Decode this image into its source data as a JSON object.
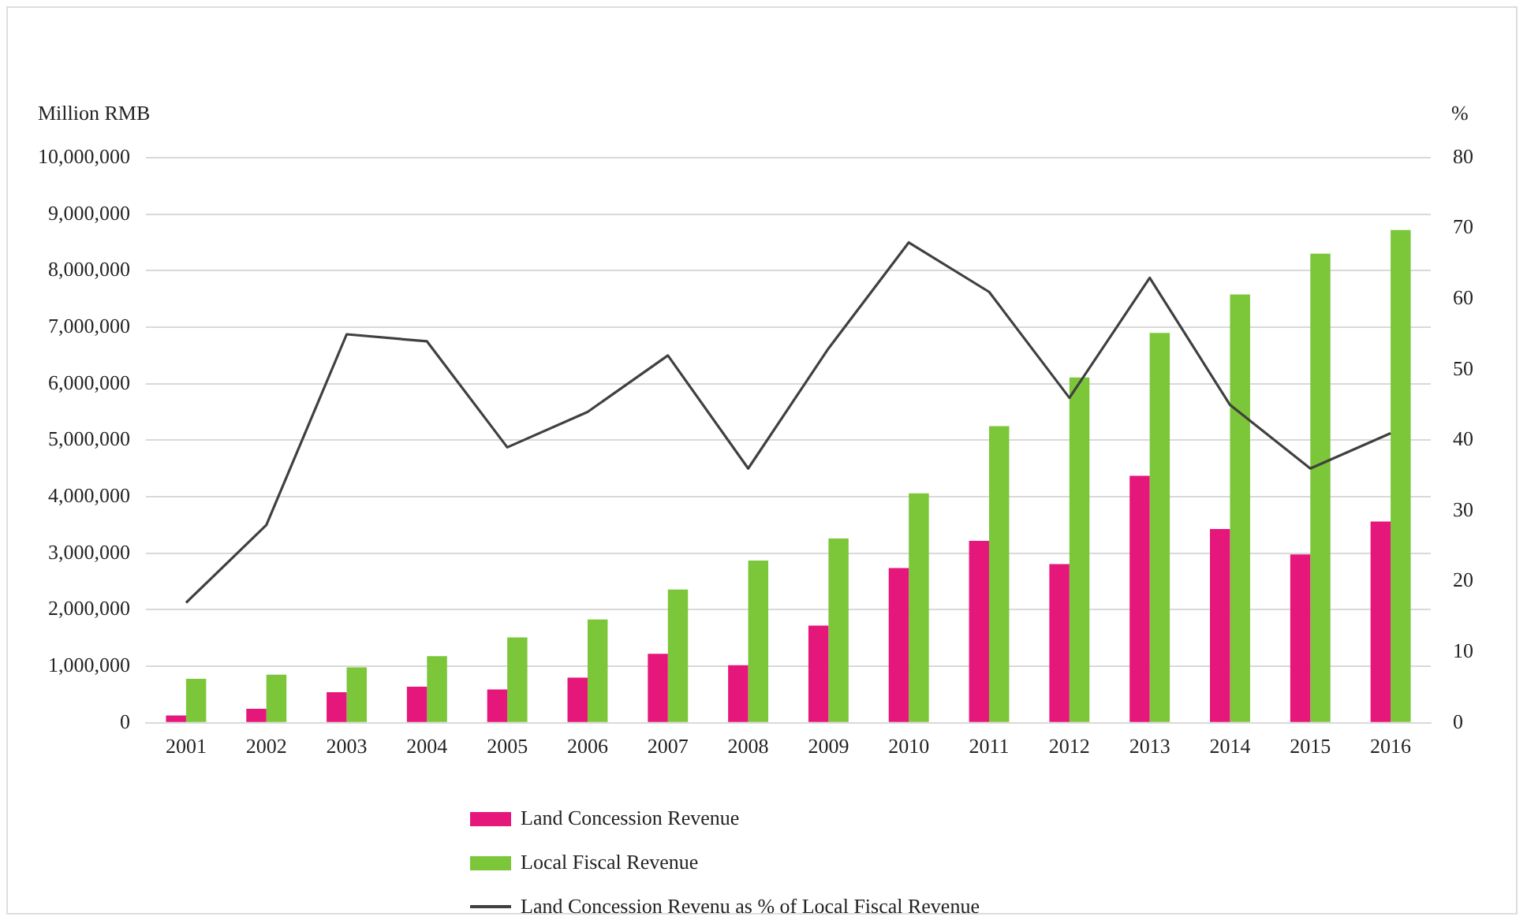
{
  "chart_data": {
    "type": "bar",
    "ylabel": "Million RMB",
    "y2label": "%",
    "categories": [
      "2001",
      "2002",
      "2003",
      "2004",
      "2005",
      "2006",
      "2007",
      "2008",
      "2009",
      "2010",
      "2011",
      "2012",
      "2013",
      "2014",
      "2015",
      "2016"
    ],
    "series": [
      {
        "name": "Land Concession Revenue",
        "color": "#e6177a",
        "values": [
          130000,
          250000,
          540000,
          640000,
          590000,
          800000,
          1220000,
          1020000,
          1720000,
          2740000,
          3220000,
          2810000,
          4370000,
          3430000,
          2980000,
          3560000
        ]
      },
      {
        "name": "Local Fiscal Revenue",
        "color": "#7cc63a",
        "values": [
          780000,
          850000,
          980000,
          1180000,
          1510000,
          1830000,
          2360000,
          2870000,
          3260000,
          4060000,
          5250000,
          6110000,
          6900000,
          7580000,
          8300000,
          8720000
        ]
      },
      {
        "name": "Land Concession Revenu as % of Local Fiscal Revenue",
        "type": "line",
        "axis": "y2",
        "color": "#404040",
        "values": [
          17,
          28,
          55,
          54,
          39,
          44,
          52,
          36,
          53,
          68,
          61,
          46,
          63,
          45,
          36,
          41
        ]
      }
    ],
    "ylim": [
      0,
      10000000
    ],
    "yticks": [
      {
        "value": 0,
        "label": "0"
      },
      {
        "value": 1000000,
        "label": "1,000,000"
      },
      {
        "value": 2000000,
        "label": "2,000,000"
      },
      {
        "value": 3000000,
        "label": "3,000,000"
      },
      {
        "value": 4000000,
        "label": "4,000,000"
      },
      {
        "value": 5000000,
        "label": "5,000,000"
      },
      {
        "value": 6000000,
        "label": "6,000,000"
      },
      {
        "value": 7000000,
        "label": "7,000,000"
      },
      {
        "value": 8000000,
        "label": "8,000,000"
      },
      {
        "value": 9000000,
        "label": "9,000,000"
      },
      {
        "value": 10000000,
        "label": "10,000,000"
      }
    ],
    "y2lim": [
      0,
      80
    ],
    "y2ticks": [
      0,
      10,
      20,
      30,
      40,
      50,
      60,
      70,
      80
    ],
    "grid": "y",
    "legend": "bottom",
    "marker": "none",
    "line_style": "solid"
  }
}
